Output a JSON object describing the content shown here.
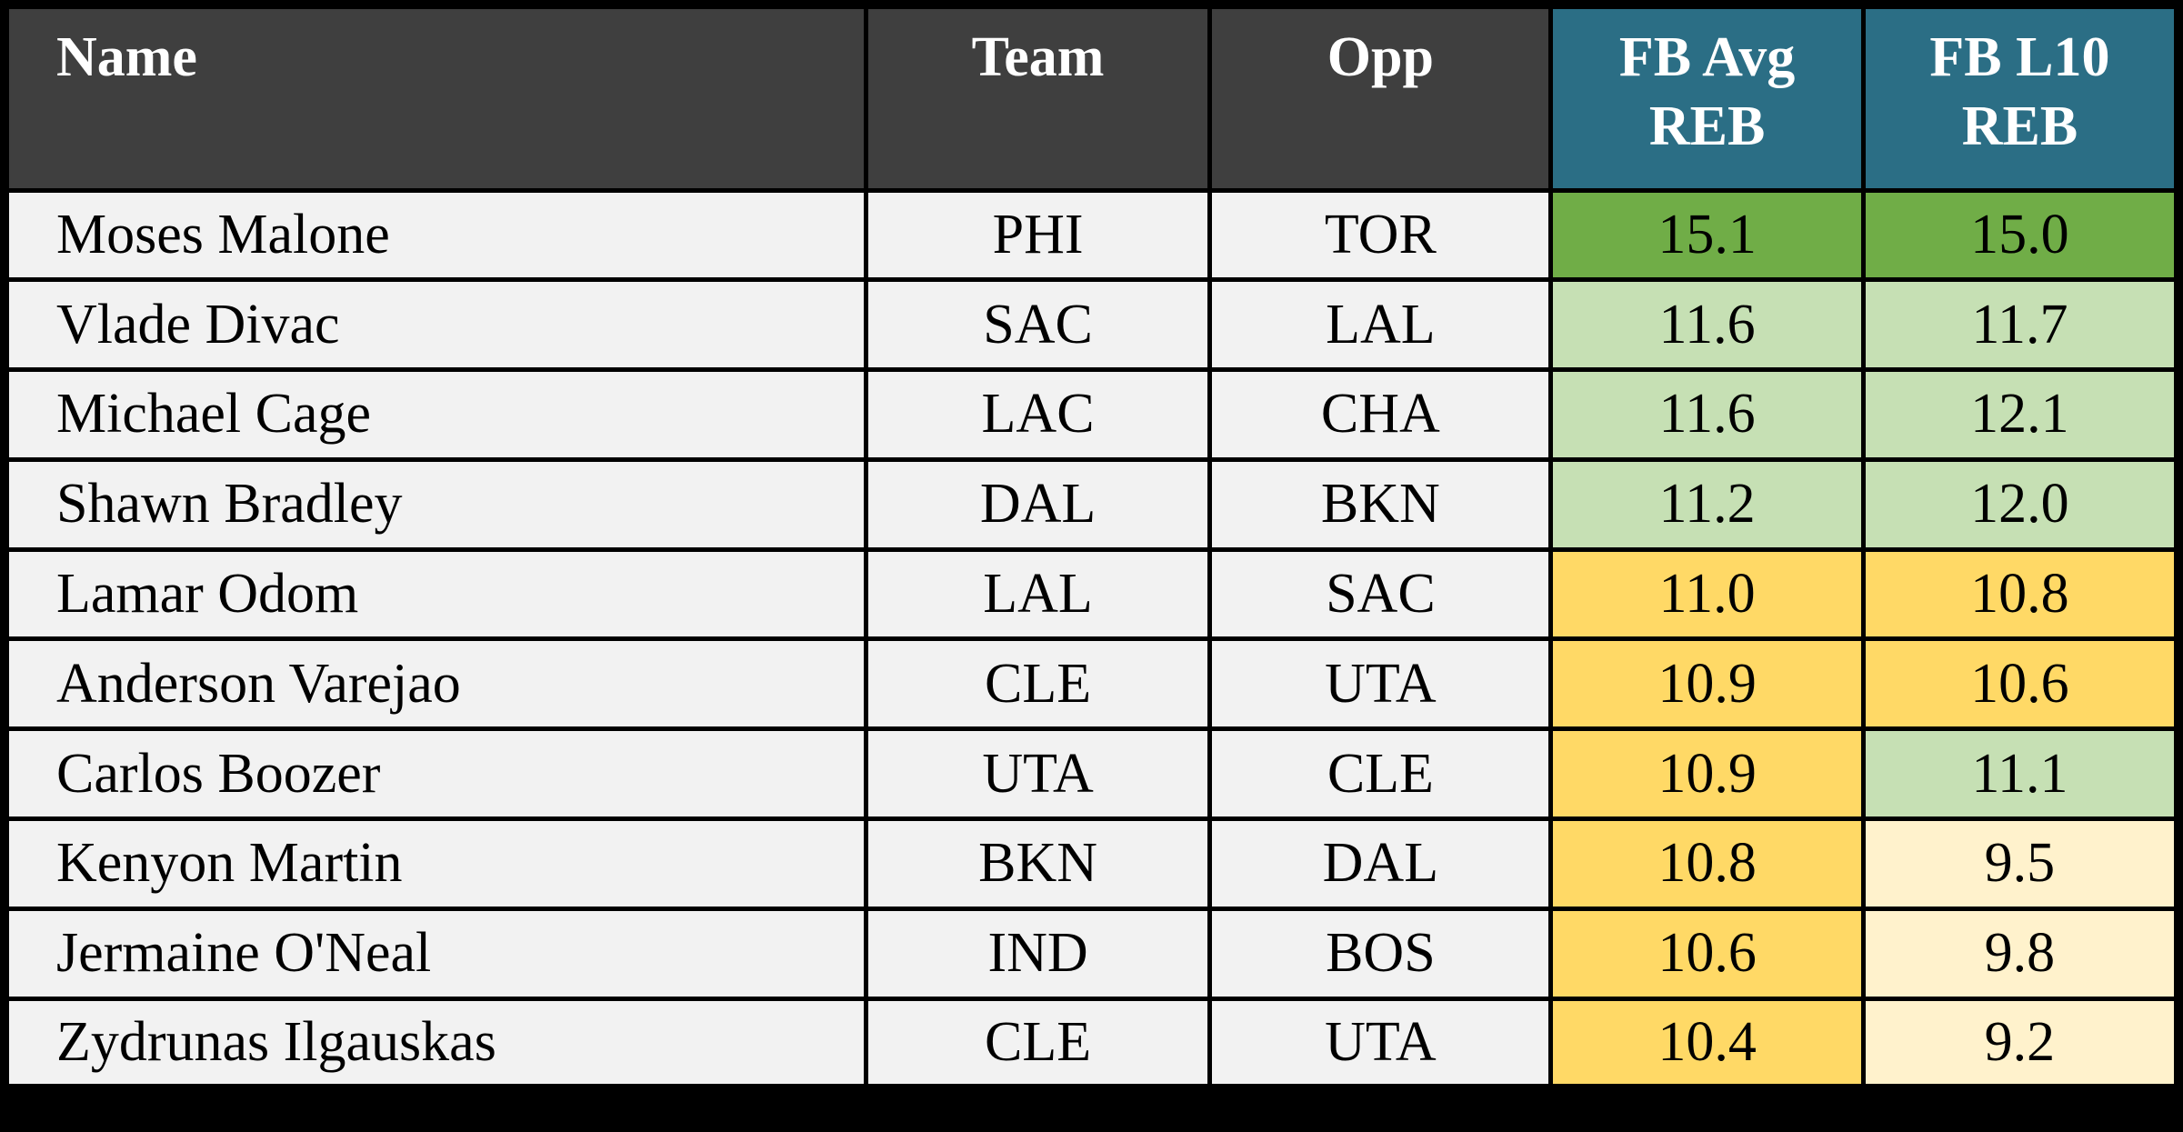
{
  "colors": {
    "border": "#000000",
    "header_dark": "#3f3f3f",
    "header_teal": "#2b6e85",
    "header_text": "#ffffff",
    "row_bg": "#f2f2f2",
    "cell_text": "#000000",
    "green_dark": "#70ad47",
    "green_light": "#c6e0b4",
    "gold": "#ffd966",
    "cream": "#fff2cc"
  },
  "table": {
    "columns": [
      {
        "key": "name",
        "label": "Name"
      },
      {
        "key": "team",
        "label": "Team"
      },
      {
        "key": "opp",
        "label": "Opp"
      },
      {
        "key": "fb_avg_reb",
        "label": "FB Avg REB"
      },
      {
        "key": "fb_l10_reb",
        "label": "FB L10 REB"
      }
    ],
    "rows": [
      {
        "name": "Moses Malone",
        "team": "PHI",
        "opp": "TOR",
        "fb_avg_reb": "15.1",
        "fb_l10_reb": "15.0",
        "fb_avg_color": "green_dark",
        "fb_l10_color": "green_dark"
      },
      {
        "name": "Vlade Divac",
        "team": "SAC",
        "opp": "LAL",
        "fb_avg_reb": "11.6",
        "fb_l10_reb": "11.7",
        "fb_avg_color": "green_light",
        "fb_l10_color": "green_light"
      },
      {
        "name": "Michael Cage",
        "team": "LAC",
        "opp": "CHA",
        "fb_avg_reb": "11.6",
        "fb_l10_reb": "12.1",
        "fb_avg_color": "green_light",
        "fb_l10_color": "green_light"
      },
      {
        "name": "Shawn Bradley",
        "team": "DAL",
        "opp": "BKN",
        "fb_avg_reb": "11.2",
        "fb_l10_reb": "12.0",
        "fb_avg_color": "green_light",
        "fb_l10_color": "green_light"
      },
      {
        "name": "Lamar Odom",
        "team": "LAL",
        "opp": "SAC",
        "fb_avg_reb": "11.0",
        "fb_l10_reb": "10.8",
        "fb_avg_color": "gold",
        "fb_l10_color": "gold"
      },
      {
        "name": "Anderson Varejao",
        "team": "CLE",
        "opp": "UTA",
        "fb_avg_reb": "10.9",
        "fb_l10_reb": "10.6",
        "fb_avg_color": "gold",
        "fb_l10_color": "gold"
      },
      {
        "name": "Carlos Boozer",
        "team": "UTA",
        "opp": "CLE",
        "fb_avg_reb": "10.9",
        "fb_l10_reb": "11.1",
        "fb_avg_color": "gold",
        "fb_l10_color": "green_light"
      },
      {
        "name": "Kenyon Martin",
        "team": "BKN",
        "opp": "DAL",
        "fb_avg_reb": "10.8",
        "fb_l10_reb": "9.5",
        "fb_avg_color": "gold",
        "fb_l10_color": "cream"
      },
      {
        "name": "Jermaine O'Neal",
        "team": "IND",
        "opp": "BOS",
        "fb_avg_reb": "10.6",
        "fb_l10_reb": "9.8",
        "fb_avg_color": "gold",
        "fb_l10_color": "cream"
      },
      {
        "name": "Zydrunas Ilgauskas",
        "team": "CLE",
        "opp": "UTA",
        "fb_avg_reb": "10.4",
        "fb_l10_reb": "9.2",
        "fb_avg_color": "gold",
        "fb_l10_color": "cream"
      }
    ]
  }
}
